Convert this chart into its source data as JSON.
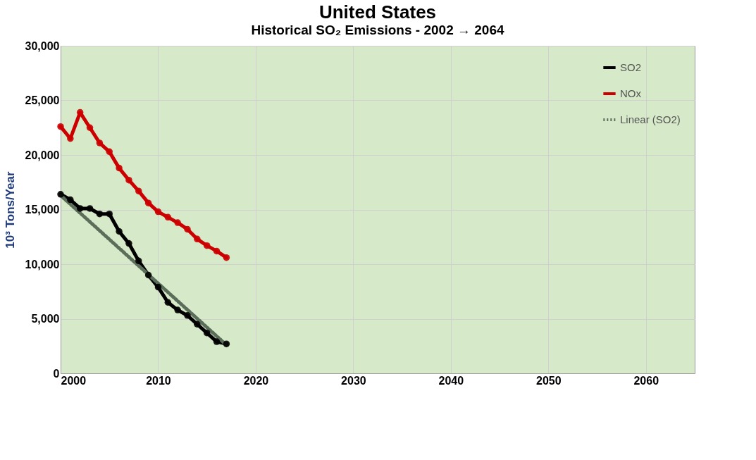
{
  "chart_data": {
    "type": "line",
    "title": "United States",
    "subtitle": "Historical SO₂ Emissions - 2002 → 2064",
    "ylabel": "10³ Tons/Year",
    "xlim": [
      2000,
      2065
    ],
    "xticks": [
      2000,
      2010,
      2020,
      2030,
      2040,
      2050,
      2060
    ],
    "ylim": [
      0,
      30000
    ],
    "yticks": [
      0,
      {
        "value": 5000,
        "label": "5,000"
      },
      {
        "value": 10000,
        "label": "10,000"
      },
      {
        "value": 15000,
        "label": "15,000"
      },
      {
        "value": 20000,
        "label": "20,000"
      },
      {
        "value": 25000,
        "label": "25,000"
      },
      {
        "value": 30000,
        "label": "30,000"
      }
    ],
    "grid": true,
    "legend": "top right",
    "marker": "circle",
    "line_style": "solid",
    "series": [
      {
        "name": "SO2",
        "color": "#000000",
        "x": [
          2000,
          2001,
          2002,
          2003,
          2004,
          2005,
          2006,
          2007,
          2008,
          2009,
          2010,
          2011,
          2012,
          2013,
          2014,
          2015,
          2016,
          2017
        ],
        "values": [
          16400,
          15900,
          15100,
          15100,
          14600,
          14600,
          13000,
          11900,
          10300,
          9000,
          7900,
          6500,
          5800,
          5300,
          4500,
          3700,
          2900,
          2700
        ]
      },
      {
        "name": "NOx",
        "color": "#cc0000",
        "x": [
          2000,
          2001,
          2002,
          2003,
          2004,
          2005,
          2006,
          2007,
          2008,
          2009,
          2010,
          2011,
          2012,
          2013,
          2014,
          2015,
          2016,
          2017
        ],
        "values": [
          22600,
          21500,
          23900,
          22500,
          21100,
          20300,
          18800,
          17700,
          16700,
          15600,
          14800,
          14300,
          13800,
          13200,
          12300,
          11700,
          11200,
          10600
        ]
      },
      {
        "name": "Linear (SO2)",
        "color": "#5a6e5a",
        "type": "line",
        "line_style": "dotted",
        "marker": "none",
        "x": [
          2000,
          2017
        ],
        "values": [
          16300,
          2600
        ]
      }
    ]
  }
}
